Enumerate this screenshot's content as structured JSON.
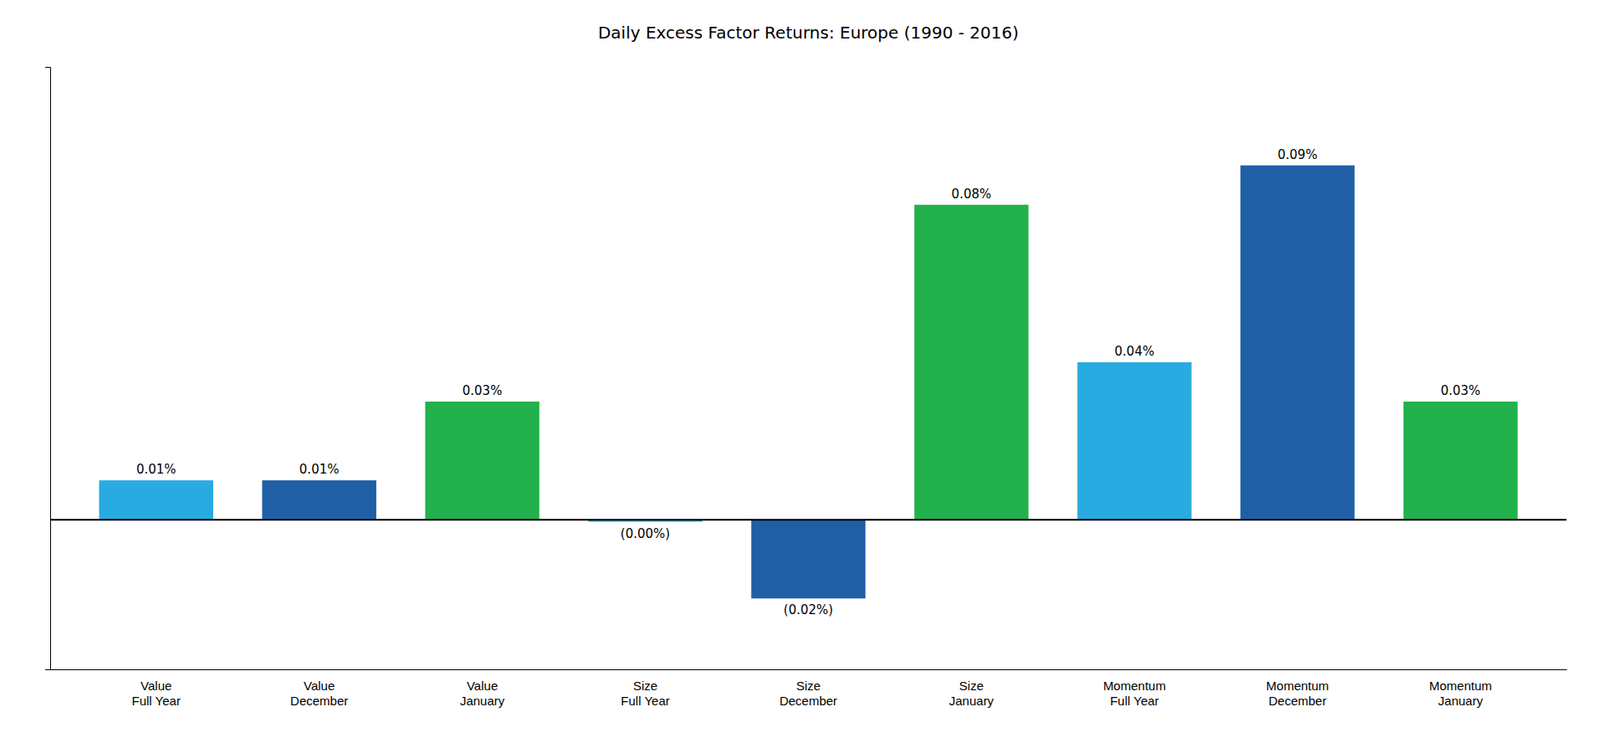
{
  "chart_data": {
    "type": "bar",
    "title": "Daily Excess Factor Returns: Europe (1990 - 2016)",
    "categories": [
      "Value\nFull Year",
      "Value\nDecember",
      "Value\nJanuary",
      "Size\nFull Year",
      "Size\nDecember",
      "Size\nJanuary",
      "Momentum\nFull Year",
      "Momentum\nDecember",
      "Momentum\nJanuary"
    ],
    "values": [
      0.0001,
      0.0001,
      0.0003,
      -5e-06,
      -0.0002,
      0.0008,
      0.0004,
      0.0009,
      0.0003
    ],
    "value_labels": [
      "0.01%",
      "0.01%",
      "0.03%",
      "(0.00%)",
      "(0.02%)",
      "0.08%",
      "0.04%",
      "0.09%",
      "0.03%"
    ],
    "colors": [
      "#29ABE2",
      "#1F5FA6",
      "#22B14C",
      "#29ABE2",
      "#1F5FA6",
      "#22B14C",
      "#29ABE2",
      "#1F5FA6",
      "#22B14C"
    ],
    "ylim": [
      -0.00038,
      0.00115
    ],
    "yticks": [],
    "data_labels": true,
    "tick_labels": "x",
    "grid": false
  }
}
